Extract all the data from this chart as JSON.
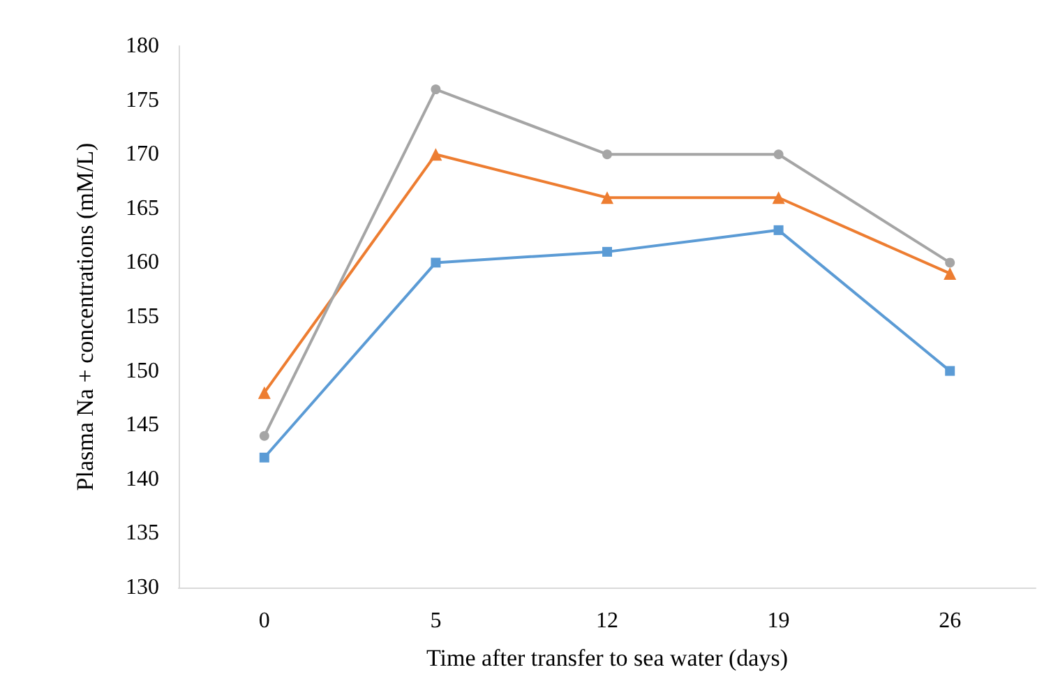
{
  "chart_data": {
    "type": "line",
    "xlabel": "Time after transfer to sea water (days)",
    "ylabel": "Plasma Na + concentrations (mM/L)",
    "categories": [
      "0",
      "5",
      "12",
      "19",
      "26"
    ],
    "ylim": [
      130,
      180
    ],
    "yticks": [
      130,
      135,
      140,
      145,
      150,
      155,
      160,
      165,
      170,
      175,
      180
    ],
    "grid": false,
    "line_style": "solid",
    "series": [
      {
        "color": "#5b9bd5",
        "marker": "square",
        "values": [
          142,
          160,
          161,
          163,
          150
        ]
      },
      {
        "color": "#ed7d31",
        "marker": "triangle",
        "values": [
          148,
          170,
          166,
          166,
          159
        ]
      },
      {
        "color": "#a5a5a5",
        "marker": "circle",
        "values": [
          144,
          176,
          170,
          170,
          160
        ]
      }
    ]
  }
}
